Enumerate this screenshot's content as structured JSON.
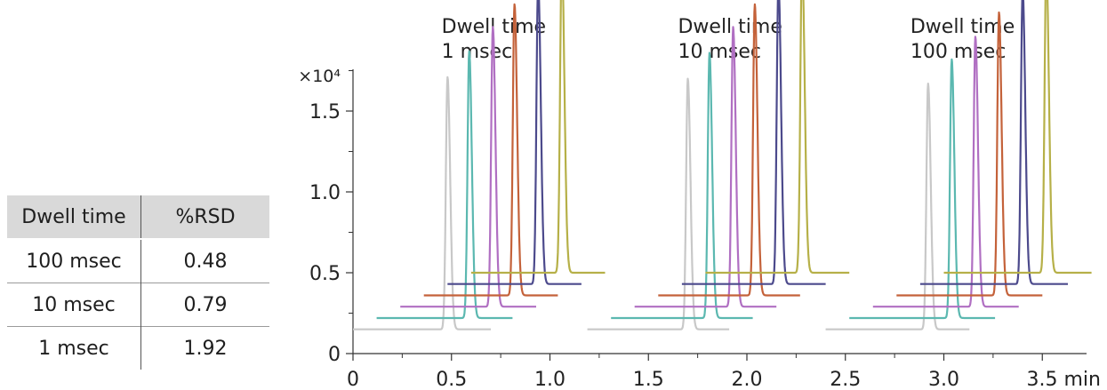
{
  "table": {
    "headers": [
      "Dwell time",
      "%RSD"
    ],
    "rows": [
      [
        "100 msec",
        "0.48"
      ],
      [
        "10 msec",
        "0.79"
      ],
      [
        "1 msec",
        "1.92"
      ]
    ]
  },
  "chart_data": {
    "type": "line",
    "xlabel": "",
    "ylabel": "",
    "x_unit": "min",
    "y_multiplier": "×10⁴",
    "xlim": [
      0,
      3.75
    ],
    "ylim": [
      0,
      1.95
    ],
    "xticks": [
      0,
      0.5,
      1.0,
      1.5,
      2.0,
      2.5,
      3.0,
      3.5
    ],
    "xtick_labels": [
      "0",
      "0.5",
      "1.0",
      "1.5",
      "2.0",
      "2.5",
      "3.0",
      "3.5 min"
    ],
    "yticks": [
      0,
      0.5,
      1.0,
      1.5
    ],
    "ytick_labels": [
      "0",
      "0.5",
      "1.0",
      "1.5"
    ],
    "grid": false,
    "annotations": [
      {
        "line1": "Dwell time",
        "line2": "1 msec",
        "x": 0.45
      },
      {
        "line1": "Dwell time",
        "line2": "10 msec",
        "x": 1.65
      },
      {
        "line1": "Dwell time",
        "line2": "100 msec",
        "x": 2.83
      }
    ],
    "colors": [
      "#c8c8c8",
      "#5bb8b0",
      "#b06fc2",
      "#c4623a",
      "#4c4a8c",
      "#b6b048"
    ],
    "groups": [
      {
        "label": "1 msec",
        "peaks": [
          {
            "baseline_start": 0.0,
            "baseline": 0.15,
            "apex_x": 0.48,
            "height": 1.56,
            "baseline_end": 0.7
          },
          {
            "baseline_start": 0.12,
            "baseline": 0.22,
            "apex_x": 0.59,
            "height": 1.65,
            "baseline_end": 0.81
          },
          {
            "baseline_start": 0.24,
            "baseline": 0.29,
            "apex_x": 0.71,
            "height": 1.73,
            "baseline_end": 0.93
          },
          {
            "baseline_start": 0.36,
            "baseline": 0.36,
            "apex_x": 0.82,
            "height": 1.8,
            "baseline_end": 1.04
          },
          {
            "baseline_start": 0.48,
            "baseline": 0.43,
            "apex_x": 0.94,
            "height": 1.87,
            "baseline_end": 1.16
          },
          {
            "baseline_start": 0.6,
            "baseline": 0.5,
            "apex_x": 1.06,
            "height": 1.95,
            "baseline_end": 1.28
          }
        ]
      },
      {
        "label": "10 msec",
        "peaks": [
          {
            "baseline_start": 1.19,
            "baseline": 0.15,
            "apex_x": 1.7,
            "height": 1.55,
            "baseline_end": 1.91
          },
          {
            "baseline_start": 1.31,
            "baseline": 0.22,
            "apex_x": 1.81,
            "height": 1.64,
            "baseline_end": 2.03
          },
          {
            "baseline_start": 1.43,
            "baseline": 0.29,
            "apex_x": 1.93,
            "height": 1.73,
            "baseline_end": 2.15
          },
          {
            "baseline_start": 1.55,
            "baseline": 0.36,
            "apex_x": 2.04,
            "height": 1.8,
            "baseline_end": 2.27
          },
          {
            "baseline_start": 1.67,
            "baseline": 0.43,
            "apex_x": 2.16,
            "height": 1.87,
            "baseline_end": 2.4
          },
          {
            "baseline_start": 1.79,
            "baseline": 0.5,
            "apex_x": 2.28,
            "height": 1.94,
            "baseline_end": 2.52
          }
        ]
      },
      {
        "label": "100 msec",
        "peaks": [
          {
            "baseline_start": 2.4,
            "baseline": 0.15,
            "apex_x": 2.92,
            "height": 1.52,
            "baseline_end": 3.13
          },
          {
            "baseline_start": 2.52,
            "baseline": 0.22,
            "apex_x": 3.04,
            "height": 1.6,
            "baseline_end": 3.26
          },
          {
            "baseline_start": 2.64,
            "baseline": 0.29,
            "apex_x": 3.16,
            "height": 1.67,
            "baseline_end": 3.38
          },
          {
            "baseline_start": 2.76,
            "baseline": 0.36,
            "apex_x": 3.28,
            "height": 1.75,
            "baseline_end": 3.5
          },
          {
            "baseline_start": 2.88,
            "baseline": 0.43,
            "apex_x": 3.4,
            "height": 1.82,
            "baseline_end": 3.63
          },
          {
            "baseline_start": 3.0,
            "baseline": 0.5,
            "apex_x": 3.52,
            "height": 1.9,
            "baseline_end": 3.75
          }
        ]
      }
    ]
  }
}
